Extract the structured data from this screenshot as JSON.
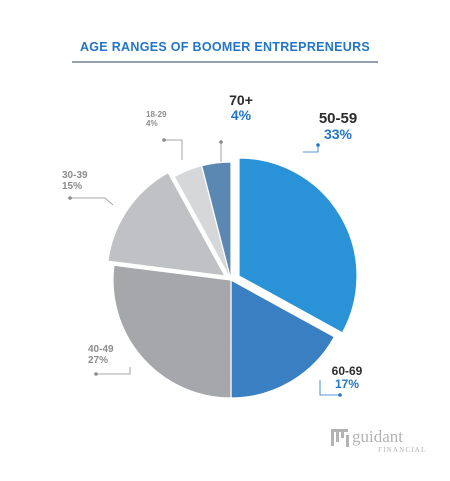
{
  "chart_data": {
    "type": "pie",
    "title": "AGE RANGES OF BOOMER ENTREPRENEURS",
    "slices": [
      {
        "label": "50-59",
        "value": 33,
        "value_text": "33%",
        "color": "#2a92d6",
        "exploded": true
      },
      {
        "label": "60-69",
        "value": 17,
        "value_text": "17%",
        "color": "#3a7fc2",
        "exploded": false
      },
      {
        "label": "40-49",
        "value": 27,
        "value_text": "27%",
        "color": "#a6a7aa",
        "exploded": false
      },
      {
        "label": "30-39",
        "value": 15,
        "value_text": "15%",
        "color": "#c0c1c4",
        "exploded": true
      },
      {
        "label": "18-29",
        "value": 4,
        "value_text": "4%",
        "color": "#d6d7d9",
        "exploded": false
      },
      {
        "label": "70+",
        "value": 4,
        "value_text": "4%",
        "color": "#5b88b3",
        "exploded": false
      }
    ],
    "colors": {
      "title": "#2176c7",
      "rule": "#2b3f5c",
      "label_dark": "#2c2c2c",
      "label_blue": "#2176c7",
      "label_gray": "#8c8c8c",
      "leader": "#8a8a8a",
      "leader_blue": "#2176c7"
    }
  },
  "logo": {
    "name": "guidant",
    "sub": "FINANCIAL"
  }
}
